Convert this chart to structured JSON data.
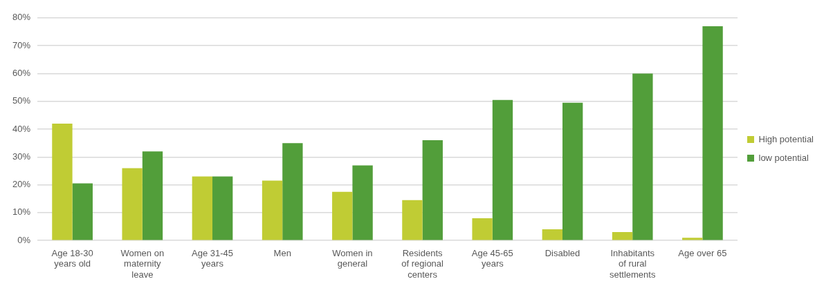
{
  "chart_data": {
    "type": "bar",
    "categories": [
      "Age 18-30 years old",
      "Women on maternity leave",
      "Age 31-45 years",
      "Men",
      "Women in general",
      "Residents of regional centers",
      "Age 45-65 years",
      "Disabled",
      "Inhabitants of rural settlements",
      "Age over 65"
    ],
    "series": [
      {
        "name": "High potential",
        "color": "#c0cc34",
        "values": [
          42,
          26,
          23,
          21.5,
          17.5,
          14.5,
          8,
          4,
          3,
          1
        ]
      },
      {
        "name": "low potential",
        "color": "#529e3a",
        "values": [
          20.5,
          32,
          23,
          35,
          27,
          36,
          50.5,
          49.5,
          60,
          77
        ]
      }
    ],
    "ylim": [
      0,
      80
    ],
    "yticks": [
      {
        "value": 0,
        "label": "0%"
      },
      {
        "value": 10,
        "label": "10%"
      },
      {
        "value": 20,
        "label": "20%"
      },
      {
        "value": 30,
        "label": "30%"
      },
      {
        "value": 40,
        "label": "40%"
      },
      {
        "value": 50,
        "label": "50%"
      },
      {
        "value": 60,
        "label": "60%"
      },
      {
        "value": 70,
        "label": "70%"
      },
      {
        "value": 80,
        "label": "80%"
      }
    ],
    "grid": "y",
    "legend": "right"
  }
}
